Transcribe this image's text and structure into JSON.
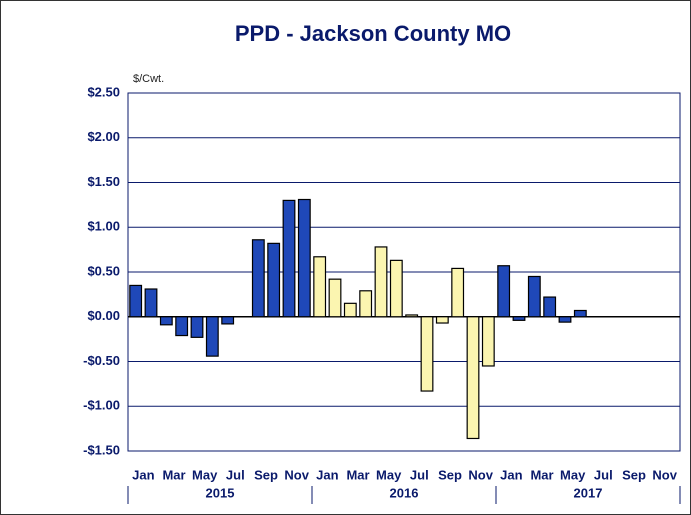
{
  "chart_data": {
    "type": "bar",
    "title": "PPD - Jackson County MO",
    "y_unit_label": "$/Cwt.",
    "categories": [
      "Jan",
      null,
      "Mar",
      null,
      "May",
      null,
      "Jul",
      null,
      "Sep",
      null,
      "Nov",
      null,
      "Jan",
      null,
      "Mar",
      null,
      "May",
      null,
      "Jul",
      null,
      "Sep",
      null,
      "Nov",
      null,
      "Jan",
      null,
      "Mar",
      null,
      "May",
      null,
      "Jul",
      null,
      "Sep",
      null,
      "Nov",
      null
    ],
    "values": [
      0.35,
      0.31,
      -0.09,
      -0.21,
      -0.23,
      -0.44,
      -0.08,
      0,
      0.86,
      0.82,
      1.3,
      1.31,
      0.67,
      0.42,
      0.15,
      0.29,
      0.78,
      0.63,
      0.02,
      -0.83,
      -0.07,
      0.54,
      -1.36,
      -0.55,
      0.57,
      -0.04,
      0.45,
      0.22,
      -0.06,
      0.07,
      null,
      null,
      null,
      null,
      null,
      null
    ],
    "year_groups": [
      {
        "label": "2015",
        "color": "#1f48b8"
      },
      {
        "label": "2016",
        "color": "#fbf5b0"
      },
      {
        "label": "2017",
        "color": "#1f48b8"
      }
    ],
    "ylim": [
      -1.5,
      2.5
    ],
    "yticks": [
      {
        "value": -1.5,
        "label": "-$1.50"
      },
      {
        "value": -1,
        "label": "-$1.00"
      },
      {
        "value": -0.5,
        "label": "-$0.50"
      },
      {
        "value": 0,
        "label": "$0.00"
      },
      {
        "value": 0.5,
        "label": "$0.50"
      },
      {
        "value": 1,
        "label": "$1.00"
      },
      {
        "value": 1.5,
        "label": "$1.50"
      },
      {
        "value": 2,
        "label": "$2.00"
      },
      {
        "value": 2.5,
        "label": "$2.50"
      }
    ],
    "grid": true
  }
}
